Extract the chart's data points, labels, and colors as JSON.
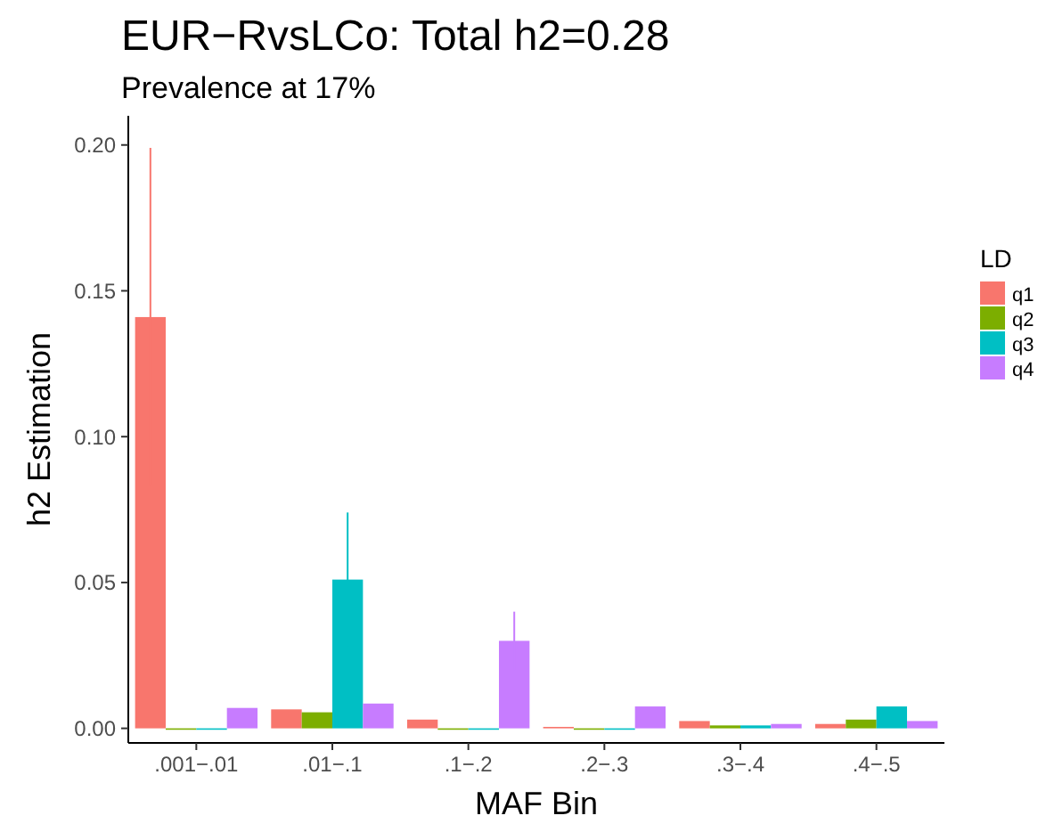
{
  "chart_data": {
    "type": "bar",
    "title": "EUR−RvsLCo: Total h2=0.28",
    "subtitle": "Prevalence at 17%",
    "xlabel": "MAF Bin",
    "ylabel": "h2 Estimation",
    "legend_title": "LD",
    "categories": [
      ".001−.01",
      ".01−.1",
      ".1−.2",
      ".2−.3",
      ".3−.4",
      ".4−.5"
    ],
    "series": [
      {
        "name": "q1",
        "color": "#f8766d",
        "values": [
          0.141,
          0.0065,
          0.003,
          0.0005,
          0.0025,
          0.0015
        ],
        "errors": [
          0.058,
          null,
          null,
          null,
          null,
          null
        ]
      },
      {
        "name": "q2",
        "color": "#7cae00",
        "values": [
          0,
          0.0055,
          0,
          0,
          0.001,
          0.003
        ],
        "errors": [
          null,
          null,
          null,
          null,
          null,
          null
        ]
      },
      {
        "name": "q3",
        "color": "#00bfc4",
        "values": [
          0,
          0.051,
          0,
          0,
          0.001,
          0.0075
        ],
        "errors": [
          null,
          0.023,
          null,
          null,
          null,
          null
        ]
      },
      {
        "name": "q4",
        "color": "#c77cff",
        "values": [
          0.007,
          0.0085,
          0.03,
          0.0075,
          0.0015,
          0.0025
        ],
        "errors": [
          null,
          null,
          0.01,
          null,
          null,
          null
        ]
      }
    ],
    "ylim": [
      -0.005,
      0.21
    ],
    "yticks": [
      {
        "value": 0,
        "label": "0.00"
      },
      {
        "value": 0.05,
        "label": "0.05"
      },
      {
        "value": 0.1,
        "label": "0.10"
      },
      {
        "value": 0.15,
        "label": "0.15"
      },
      {
        "value": 0.2,
        "label": "0.20"
      }
    ],
    "grid": false,
    "legend": "right"
  }
}
